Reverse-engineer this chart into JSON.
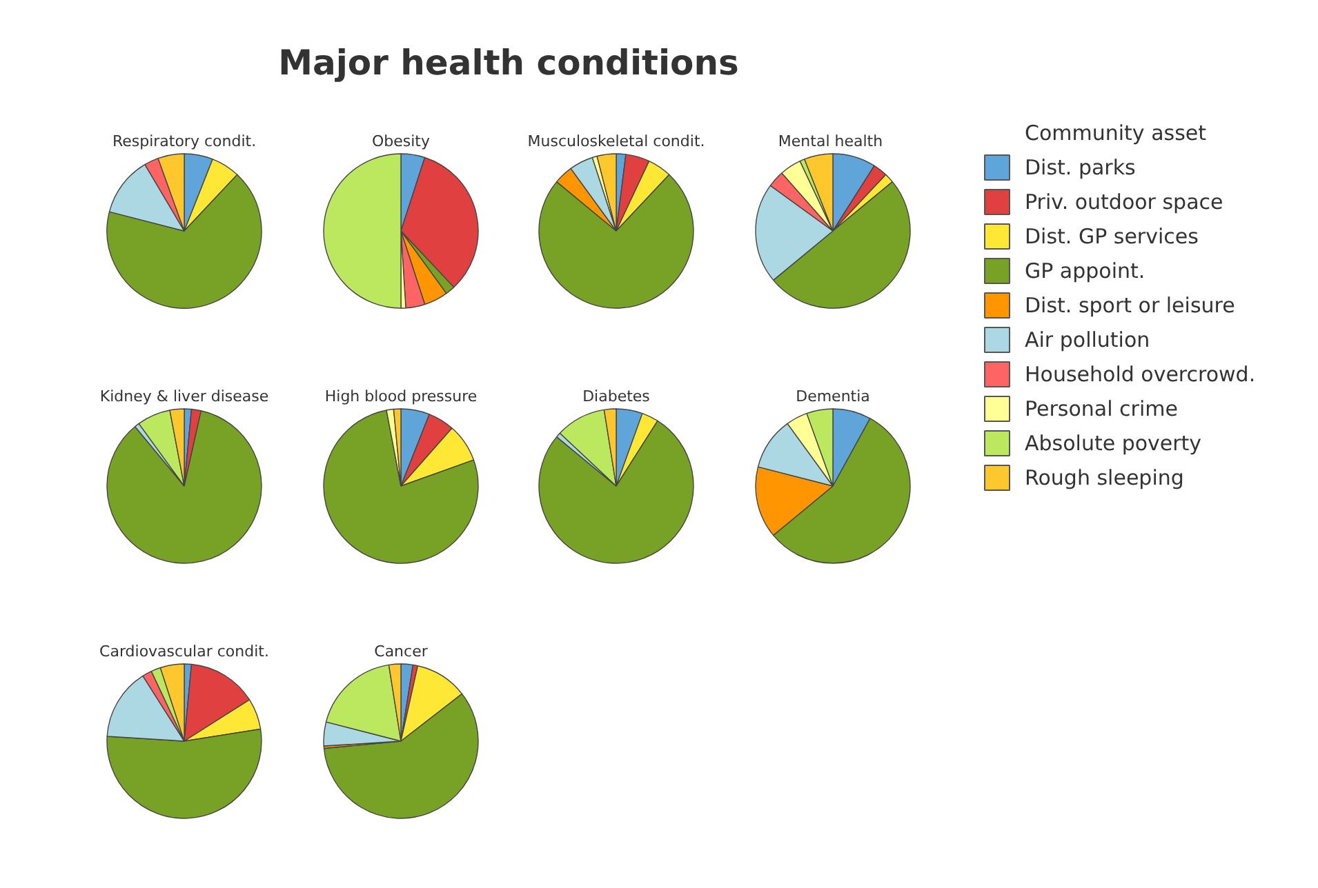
{
  "chart_data": {
    "type": "pie",
    "title": "Major health conditions",
    "legend_title": "Community asset",
    "legend": "right",
    "categories": [
      "Dist. parks",
      "Priv. outdoor space",
      "Dist. GP services",
      "GP appoint.",
      "Dist. sport or leisure",
      "Air pollution",
      "Household overcrowd.",
      "Personal crime",
      "Absolute poverty",
      "Rough sleeping"
    ],
    "colors": [
      "#5fa5da",
      "#e0403f",
      "#ffe835",
      "#77a226",
      "#ff9500",
      "#acd8e4",
      "#ff6464",
      "#ffff96",
      "#bce85f",
      "#ffc72e"
    ],
    "series": [
      {
        "name": "Respiratory condit.",
        "values": [
          6,
          0,
          6,
          67,
          0,
          12.5,
          3,
          0,
          0,
          5.5
        ]
      },
      {
        "name": "Obesity",
        "values": [
          5,
          33,
          0,
          2,
          5,
          0,
          4,
          1,
          50,
          0
        ]
      },
      {
        "name": "Musculoskeletal condit.",
        "values": [
          2,
          5,
          5,
          74,
          4,
          5,
          0,
          1,
          0,
          4
        ]
      },
      {
        "name": "Mental  health",
        "values": [
          9,
          3,
          2,
          50,
          0,
          21,
          3.5,
          4.5,
          1,
          6
        ]
      },
      {
        "name": "Kidney & liver disease",
        "values": [
          1.5,
          2,
          0,
          85.5,
          0,
          1,
          0,
          0,
          7,
          3
        ]
      },
      {
        "name": "High blood pressure",
        "values": [
          6,
          5.5,
          8,
          77.5,
          0,
          0,
          0,
          1.5,
          0,
          1.5
        ]
      },
      {
        "name": "Diabetes",
        "values": [
          5.5,
          0,
          3.5,
          77,
          0,
          1,
          0,
          0,
          10.5,
          2.5
        ]
      },
      {
        "name": "Dementia",
        "values": [
          8,
          0,
          0,
          56,
          15,
          11,
          0,
          4.5,
          5.5,
          0
        ]
      },
      {
        "name": "Cardiovascular condit.",
        "values": [
          1.5,
          14.5,
          6.5,
          53.5,
          0,
          15,
          2,
          0,
          2,
          5
        ]
      },
      {
        "name": "Cancer",
        "values": [
          2.5,
          1,
          11,
          59,
          0.5,
          5,
          0,
          0,
          18.5,
          2.5
        ]
      }
    ]
  }
}
